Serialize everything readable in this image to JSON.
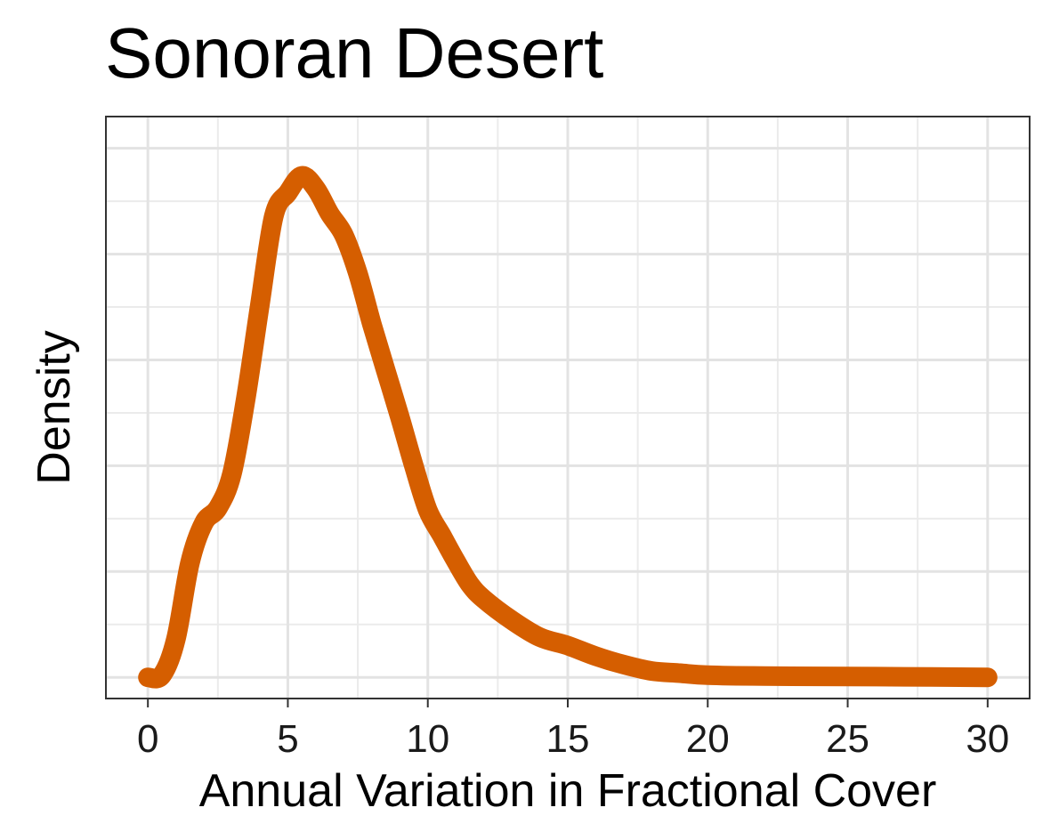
{
  "chart_data": {
    "type": "line",
    "title": "Sonoran Desert",
    "xlabel": "Annual Variation in Fractional Cover",
    "ylabel": "Density",
    "xlim": [
      -1.5,
      31.5
    ],
    "ylim": [
      -0.005,
      0.1325
    ],
    "x_ticks": [
      0,
      5,
      10,
      15,
      20,
      25,
      30
    ],
    "y_tick_labels_shown": false,
    "y_grid_major": [
      0,
      0.025,
      0.05,
      0.075,
      0.1,
      0.125
    ],
    "y_grid_minor": [
      0.0125,
      0.0375,
      0.0625,
      0.0875,
      0.1125
    ],
    "grid": true,
    "line_color": "#D55E00",
    "series": [
      {
        "x": [
          0,
          0.5,
          1.0,
          1.5,
          2.0,
          2.5,
          3.0,
          3.5,
          4.0,
          4.5,
          5.0,
          5.5,
          6.0,
          6.5,
          7.0,
          7.5,
          8.0,
          8.5,
          9.0,
          9.5,
          10.0,
          10.5,
          11.0,
          11.5,
          12.0,
          13.0,
          14.0,
          15.0,
          16.0,
          17.0,
          18.0,
          19.0,
          20.0,
          22.0,
          25.0,
          28.0,
          30.0
        ],
        "y": [
          0.0,
          0.0005,
          0.009,
          0.027,
          0.0365,
          0.04,
          0.048,
          0.066,
          0.088,
          0.109,
          0.1145,
          0.1185,
          0.1155,
          0.1095,
          0.1045,
          0.0955,
          0.0835,
          0.0725,
          0.0615,
          0.05,
          0.0395,
          0.0335,
          0.0275,
          0.022,
          0.0185,
          0.0135,
          0.0095,
          0.0075,
          0.005,
          0.003,
          0.0015,
          0.001,
          0.0005,
          0.0003,
          0.0002,
          0.0001,
          0.0
        ]
      }
    ]
  }
}
